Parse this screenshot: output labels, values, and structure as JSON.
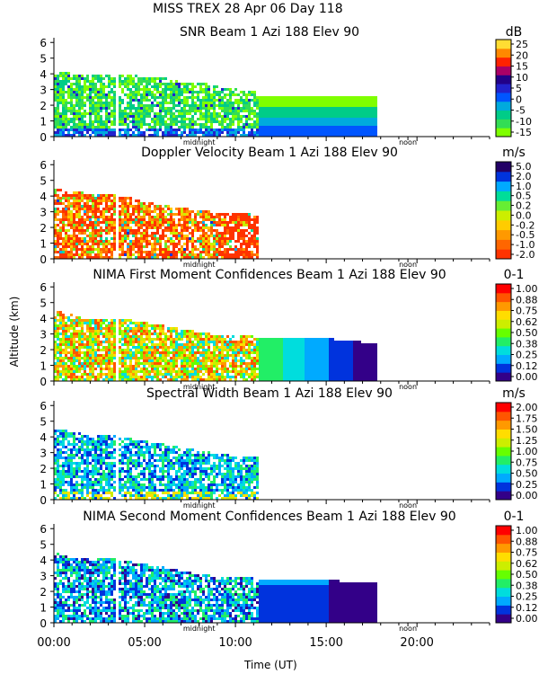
{
  "header": {
    "line1": "MISS TREX    28 Apr 06 Day 118"
  },
  "colors": {
    "snr": [
      "#7fff00",
      "#33dd55",
      "#00cc88",
      "#00aadd",
      "#0055ff",
      "#2222cc",
      "#220088",
      "#aa0066",
      "#ff2200",
      "#ff8800",
      "#ffdd33"
    ],
    "vel": [
      "#ff3300",
      "#ff6600",
      "#ff9900",
      "#ffcc00",
      "#ccee00",
      "#66ee33",
      "#00dd99",
      "#00aaff",
      "#0033dd",
      "#220066"
    ],
    "conf": [
      "#330088",
      "#0033dd",
      "#00aaff",
      "#00dddd",
      "#22ee66",
      "#66ff00",
      "#ccee00",
      "#ffdd00",
      "#ff9900",
      "#ff5500",
      "#ff0000"
    ],
    "width": [
      "#330088",
      "#0033dd",
      "#00aaff",
      "#00dddd",
      "#22ee66",
      "#66ff00",
      "#ccee00",
      "#ffdd00",
      "#ff9900",
      "#ff5500",
      "#ff0000"
    ]
  },
  "chart_data": [
    {
      "type": "heatmap",
      "title": "SNR Beam 1 Azi 188 Elev 90",
      "unit": "dB",
      "colorbar_ticks": [
        "25",
        "20",
        "15",
        "10",
        "5",
        "0",
        "-5",
        "-10",
        "-15"
      ],
      "colorbar_range": [
        -17,
        27
      ],
      "palette": "snr",
      "xlim": [
        0,
        24
      ],
      "ylim": [
        0,
        6.3
      ],
      "yticks": [
        "0",
        "1",
        "2",
        "3",
        "4",
        "5",
        "6"
      ],
      "marker_labels": {
        "midnight": "midnight",
        "noon": "noon"
      },
      "marker_hours": {
        "midnight": 8,
        "noon": 19.5
      },
      "data_end_hour": 17.8,
      "dense_end_hour": 11.2,
      "mode": "snr",
      "extent": [
        [
          0,
          4.2
        ],
        [
          1,
          4.1
        ],
        [
          2,
          4.0
        ],
        [
          3,
          4.1
        ],
        [
          4,
          4.0
        ],
        [
          5,
          3.9
        ],
        [
          6,
          3.8
        ],
        [
          7,
          3.6
        ],
        [
          8,
          3.5
        ],
        [
          9,
          3.3
        ],
        [
          10,
          3.1
        ],
        [
          11,
          3.0
        ],
        [
          11.2,
          2.9
        ],
        [
          17.8,
          2.9
        ]
      ]
    },
    {
      "type": "heatmap",
      "title": "Doppler Velocity Beam 1 Azi 188 Elev 90",
      "unit": "m/s",
      "colorbar_ticks": [
        "5.0",
        "2.0",
        "1.0",
        "0.5",
        "0.2",
        "0.0",
        "-0.2",
        "-0.5",
        "-1.0",
        "-2.0"
      ],
      "colorbar_range": [
        -2.3,
        5.3
      ],
      "palette": "vel",
      "xlim": [
        0,
        24
      ],
      "ylim": [
        0,
        6.3
      ],
      "yticks": [
        "0",
        "1",
        "2",
        "3",
        "4",
        "5",
        "6"
      ],
      "marker_labels": {
        "midnight": "midnight",
        "noon": "noon"
      },
      "marker_hours": {
        "midnight": 8,
        "noon": 19.5
      },
      "data_end_hour": 11.2,
      "dense_end_hour": 11.2,
      "mode": "vel",
      "extent": [
        [
          0,
          4.5
        ],
        [
          1,
          4.4
        ],
        [
          2,
          4.2
        ],
        [
          3,
          4.2
        ],
        [
          4,
          4.0
        ],
        [
          5,
          3.7
        ],
        [
          6,
          3.5
        ],
        [
          7,
          3.3
        ],
        [
          8,
          3.2
        ],
        [
          9,
          3.0
        ],
        [
          10,
          3.0
        ],
        [
          11.2,
          2.9
        ]
      ]
    },
    {
      "type": "heatmap",
      "title": "NIMA First Moment Confidences Beam 1 Azi 188 Elev 90",
      "unit": "0-1",
      "colorbar_ticks": [
        "1.00",
        "0.88",
        "0.75",
        "0.62",
        "0.50",
        "0.38",
        "0.25",
        "0.12",
        "0.00"
      ],
      "colorbar_range": [
        0,
        1.0
      ],
      "palette": "conf",
      "xlim": [
        0,
        24
      ],
      "ylim": [
        0,
        6.3
      ],
      "yticks": [
        "0",
        "1",
        "2",
        "3",
        "4",
        "5",
        "6"
      ],
      "marker_labels": {
        "midnight": "midnight",
        "noon": "noon"
      },
      "marker_hours": {
        "midnight": 8,
        "noon": 19.5
      },
      "data_end_hour": 17.8,
      "dense_end_hour": 11.2,
      "mode": "conf1",
      "extent": [
        [
          0,
          4.6
        ],
        [
          1,
          4.3
        ],
        [
          2,
          4.0
        ],
        [
          3,
          4.1
        ],
        [
          4,
          4.0
        ],
        [
          5,
          3.8
        ],
        [
          6,
          3.6
        ],
        [
          7,
          3.4
        ],
        [
          8,
          3.2
        ],
        [
          9,
          3.0
        ],
        [
          10,
          3.0
        ],
        [
          11.2,
          2.9
        ],
        [
          15,
          2.8
        ],
        [
          16.5,
          2.6
        ],
        [
          17.8,
          2.5
        ]
      ]
    },
    {
      "type": "heatmap",
      "title": "Spectral Width Beam 1 Azi 188 Elev 90",
      "unit": "m/s",
      "colorbar_ticks": [
        "2.00",
        "1.75",
        "1.50",
        "1.25",
        "1.00",
        "0.75",
        "0.50",
        "0.25",
        "0.00"
      ],
      "colorbar_range": [
        0,
        2.0
      ],
      "palette": "width",
      "xlim": [
        0,
        24
      ],
      "ylim": [
        0,
        6.3
      ],
      "yticks": [
        "0",
        "1",
        "2",
        "3",
        "4",
        "5",
        "6"
      ],
      "marker_labels": {
        "midnight": "midnight",
        "noon": "noon"
      },
      "marker_hours": {
        "midnight": 8,
        "noon": 19.5
      },
      "data_end_hour": 11.2,
      "dense_end_hour": 11.2,
      "mode": "width",
      "extent": [
        [
          0,
          4.6
        ],
        [
          1,
          4.4
        ],
        [
          2,
          4.1
        ],
        [
          3,
          4.2
        ],
        [
          4,
          4.0
        ],
        [
          5,
          3.8
        ],
        [
          6,
          3.6
        ],
        [
          7,
          3.4
        ],
        [
          8,
          3.2
        ],
        [
          9,
          3.0
        ],
        [
          10,
          2.9
        ],
        [
          11.2,
          2.9
        ]
      ]
    },
    {
      "type": "heatmap",
      "title": "NIMA Second Moment Confidences Beam 1 Azi 188 Elev 90",
      "unit": "0-1",
      "colorbar_ticks": [
        "1.00",
        "0.88",
        "0.75",
        "0.62",
        "0.50",
        "0.38",
        "0.25",
        "0.12",
        "0.00"
      ],
      "colorbar_range": [
        0,
        1.0
      ],
      "palette": "conf",
      "xlim": [
        0,
        24
      ],
      "ylim": [
        0,
        6.3
      ],
      "yticks": [
        "0",
        "1",
        "2",
        "3",
        "4",
        "5",
        "6"
      ],
      "marker_labels": {
        "midnight": "midnight",
        "noon": "noon"
      },
      "marker_hours": {
        "midnight": 8,
        "noon": 19.5
      },
      "data_end_hour": 17.8,
      "dense_end_hour": 11.2,
      "mode": "conf2",
      "extent": [
        [
          0,
          4.6
        ],
        [
          1,
          4.3
        ],
        [
          2,
          4.1
        ],
        [
          3,
          4.2
        ],
        [
          4,
          4.0
        ],
        [
          5,
          3.8
        ],
        [
          6,
          3.6
        ],
        [
          7,
          3.4
        ],
        [
          8,
          3.2
        ],
        [
          9,
          3.0
        ],
        [
          10,
          3.0
        ],
        [
          11.2,
          2.9
        ],
        [
          15,
          2.8
        ],
        [
          17.8,
          2.6
        ]
      ]
    }
  ],
  "xaxis": {
    "ticks": [
      "00:00",
      "05:00",
      "10:00",
      "15:00",
      "20:00"
    ],
    "tick_hours": [
      0,
      5,
      10,
      15,
      20
    ],
    "label": "Time (UT)"
  },
  "yaxis": {
    "label": "Altitude (km)"
  }
}
